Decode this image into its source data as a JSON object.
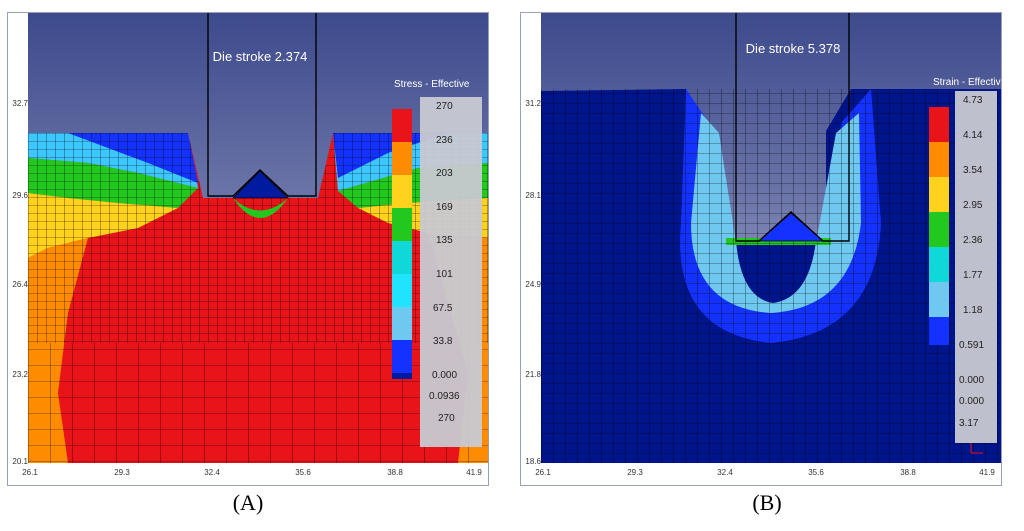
{
  "panel_a": {
    "die_label": "Die stroke 2.374",
    "legend_title": "Stress - Effective",
    "legend_labels": [
      "270",
      "236",
      "203",
      "169",
      "135",
      "101",
      "67.5",
      "33.8",
      "0.000"
    ],
    "legend_extra": [
      "0.0936",
      "270"
    ],
    "y_ticks": [
      "32.7",
      "29.6",
      "26.4",
      "23.2",
      "20.1"
    ],
    "x_ticks": [
      "26.1",
      "29.3",
      "32.4",
      "35.6",
      "38.8",
      "41.9"
    ],
    "caption": "(A)"
  },
  "panel_b": {
    "die_label": "Die stroke 5.378",
    "legend_title": "Strain - Effective",
    "legend_labels": [
      "4.73",
      "4.14",
      "3.54",
      "2.95",
      "2.36",
      "1.77",
      "1.18",
      "0.591",
      "0.000"
    ],
    "legend_extra": [
      "0.000",
      "3.17"
    ],
    "y_ticks": [
      "31.2",
      "28.1",
      "24.9",
      "21.8",
      "18.6"
    ],
    "x_ticks": [
      "26.1",
      "29.3",
      "32.4",
      "35.6",
      "38.8",
      "41.9"
    ],
    "caption": "(B)"
  },
  "colors": {
    "scale": [
      "#e8141a",
      "#ff8c00",
      "#ffd21e",
      "#22c81e",
      "#10d8d8",
      "#20e4ff",
      "#6ec8f0",
      "#1432ff",
      "#001aa0"
    ],
    "background_gradient_top": "#3d4a8c",
    "background_gradient_bottom": "#c9cbe0"
  }
}
